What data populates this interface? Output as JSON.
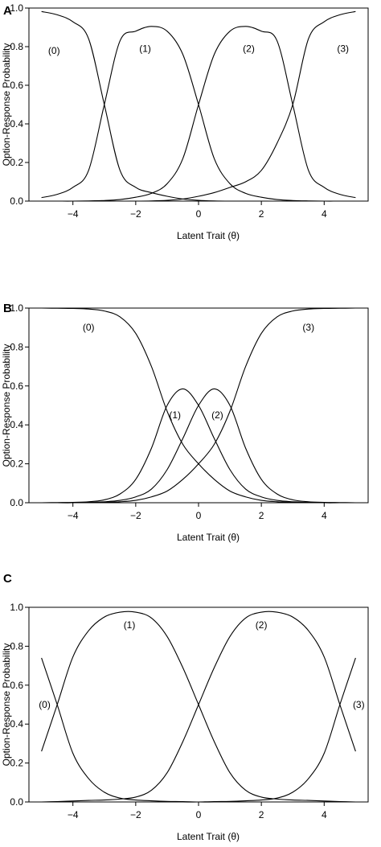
{
  "chart_data": [
    {
      "panel": "A",
      "type": "line",
      "xlabel": "Latent Trait (θ)",
      "ylabel": "Option-Response Probability",
      "xlim": [
        -5.4,
        5.4
      ],
      "ylim": [
        0.0,
        1.0
      ],
      "x_ticks": [
        -4,
        -2,
        0,
        2,
        4
      ],
      "x_tick_labels": [
        "−4",
        "−2",
        "0",
        "2",
        "4"
      ],
      "y_ticks": [
        0.0,
        0.2,
        0.4,
        0.6,
        0.8,
        1.0
      ],
      "y_tick_labels": [
        "0.0",
        "0.2",
        "0.4",
        "0.6",
        "0.8",
        "1.0"
      ],
      "grid": false,
      "x": [
        -5,
        -4.5,
        -4,
        -3.5,
        -3,
        -2.5,
        -2,
        -1.5,
        -1,
        -0.5,
        0,
        0.5,
        1,
        1.5,
        2,
        2.5,
        3,
        3.5,
        4,
        4.5,
        5
      ],
      "series": [
        {
          "name": "(0)",
          "values": [
            0.982,
            0.965,
            0.929,
            0.841,
            0.5,
            0.159,
            0.071,
            0.044,
            0.025,
            0.011,
            0.004,
            0.001,
            0.0,
            0.0,
            0.0,
            0.0,
            0.0,
            0.0,
            0.0,
            0.0,
            0.0
          ]
        },
        {
          "name": "(1)",
          "values": [
            0.018,
            0.035,
            0.071,
            0.159,
            0.5,
            0.83,
            0.88,
            0.905,
            0.88,
            0.76,
            0.5,
            0.22,
            0.09,
            0.04,
            0.02,
            0.008,
            0.003,
            0.001,
            0.0,
            0.0,
            0.0
          ]
        },
        {
          "name": "(2)",
          "values": [
            0.0,
            0.0,
            0.0,
            0.001,
            0.003,
            0.008,
            0.02,
            0.04,
            0.09,
            0.22,
            0.5,
            0.76,
            0.88,
            0.905,
            0.88,
            0.83,
            0.5,
            0.159,
            0.071,
            0.035,
            0.018
          ]
        },
        {
          "name": "(3)",
          "values": [
            0.0,
            0.0,
            0.0,
            0.0,
            0.0,
            0.0,
            0.0,
            0.001,
            0.004,
            0.011,
            0.025,
            0.044,
            0.071,
            0.1,
            0.159,
            0.3,
            0.5,
            0.841,
            0.929,
            0.965,
            0.982
          ]
        }
      ],
      "labels": [
        {
          "text": "(0)",
          "x": -4.6,
          "y": 0.78
        },
        {
          "text": "(1)",
          "x": -1.7,
          "y": 0.79
        },
        {
          "text": "(2)",
          "x": 1.6,
          "y": 0.79
        },
        {
          "text": "(3)",
          "x": 4.6,
          "y": 0.79
        }
      ]
    },
    {
      "panel": "B",
      "type": "line",
      "xlabel": "Latent Trait (θ)",
      "ylabel": "Option-Response Probability",
      "xlim": [
        -5.4,
        5.4
      ],
      "ylim": [
        0.0,
        1.0
      ],
      "x_ticks": [
        -4,
        -2,
        0,
        2,
        4
      ],
      "x_tick_labels": [
        "−4",
        "−2",
        "0",
        "2",
        "4"
      ],
      "y_ticks": [
        0.0,
        0.2,
        0.4,
        0.6,
        0.8,
        1.0
      ],
      "y_tick_labels": [
        "0.0",
        "0.2",
        "0.4",
        "0.6",
        "0.8",
        "1.0"
      ],
      "grid": false,
      "x": [
        -5,
        -4.5,
        -4,
        -3.5,
        -3,
        -2.5,
        -2,
        -1.5,
        -1,
        -0.5,
        0,
        0.5,
        1,
        1.5,
        2,
        2.5,
        3,
        3.5,
        4,
        4.5,
        5
      ],
      "series": [
        {
          "name": "(0)",
          "values": [
            1.0,
            0.999,
            0.998,
            0.995,
            0.985,
            0.955,
            0.87,
            0.7,
            0.47,
            0.3,
            0.2,
            0.12,
            0.06,
            0.03,
            0.012,
            0.005,
            0.002,
            0.001,
            0.0,
            0.0,
            0.0
          ]
        },
        {
          "name": "(1)",
          "values": [
            0.0,
            0.001,
            0.002,
            0.005,
            0.015,
            0.045,
            0.12,
            0.28,
            0.5,
            0.585,
            0.5,
            0.33,
            0.17,
            0.07,
            0.03,
            0.012,
            0.005,
            0.002,
            0.0,
            0.0,
            0.0
          ]
        },
        {
          "name": "(2)",
          "values": [
            0.0,
            0.0,
            0.0,
            0.002,
            0.005,
            0.012,
            0.03,
            0.07,
            0.17,
            0.33,
            0.5,
            0.585,
            0.5,
            0.28,
            0.12,
            0.045,
            0.015,
            0.005,
            0.002,
            0.001,
            0.0
          ]
        },
        {
          "name": "(3)",
          "values": [
            0.0,
            0.0,
            0.0,
            0.001,
            0.002,
            0.005,
            0.012,
            0.03,
            0.06,
            0.12,
            0.2,
            0.3,
            0.47,
            0.7,
            0.87,
            0.955,
            0.985,
            0.995,
            0.998,
            0.999,
            1.0
          ]
        }
      ],
      "labels": [
        {
          "text": "(0)",
          "x": -3.5,
          "y": 0.9
        },
        {
          "text": "(1)",
          "x": -0.75,
          "y": 0.45
        },
        {
          "text": "(2)",
          "x": 0.6,
          "y": 0.45
        },
        {
          "text": "(3)",
          "x": 3.5,
          "y": 0.9
        }
      ]
    },
    {
      "panel": "C",
      "type": "line",
      "xlabel": "Latent Trait (θ)",
      "ylabel": "Option-Response Probability",
      "xlim": [
        -5.4,
        5.4
      ],
      "ylim": [
        0.0,
        1.0
      ],
      "x_ticks": [
        -4,
        -2,
        0,
        2,
        4
      ],
      "x_tick_labels": [
        "−4",
        "−2",
        "0",
        "2",
        "4"
      ],
      "y_ticks": [
        0.0,
        0.2,
        0.4,
        0.6,
        0.8,
        1.0
      ],
      "y_tick_labels": [
        "0.0",
        "0.2",
        "0.4",
        "0.6",
        "0.8",
        "1.0"
      ],
      "grid": false,
      "x": [
        -5,
        -4.5,
        -4,
        -3.5,
        -3,
        -2.5,
        -2,
        -1.5,
        -1,
        -0.5,
        0,
        0.5,
        1,
        1.5,
        2,
        2.5,
        3,
        3.5,
        4,
        4.5,
        5
      ],
      "series": [
        {
          "name": "(0)",
          "values": [
            0.74,
            0.5,
            0.25,
            0.12,
            0.05,
            0.02,
            0.01,
            0.006,
            0.003,
            0.002,
            0.0,
            0.0,
            0.0,
            0.0,
            0.0,
            0.0,
            0.0,
            0.0,
            0.0,
            0.0,
            0.0
          ]
        },
        {
          "name": "(1)",
          "values": [
            0.26,
            0.5,
            0.745,
            0.88,
            0.95,
            0.975,
            0.975,
            0.945,
            0.85,
            0.69,
            0.5,
            0.31,
            0.15,
            0.06,
            0.025,
            0.015,
            0.01,
            0.008,
            0.005,
            0.002,
            0.0
          ]
        },
        {
          "name": "(2)",
          "values": [
            0.0,
            0.002,
            0.005,
            0.008,
            0.01,
            0.015,
            0.025,
            0.06,
            0.15,
            0.31,
            0.5,
            0.69,
            0.85,
            0.945,
            0.975,
            0.975,
            0.95,
            0.88,
            0.745,
            0.5,
            0.26
          ]
        },
        {
          "name": "(3)",
          "values": [
            0.0,
            0.0,
            0.0,
            0.0,
            0.0,
            0.0,
            0.0,
            0.0,
            0.0,
            0.0,
            0.0,
            0.002,
            0.003,
            0.006,
            0.01,
            0.02,
            0.05,
            0.12,
            0.25,
            0.5,
            0.74
          ]
        }
      ],
      "labels": [
        {
          "text": "(0)",
          "x": -4.9,
          "y": 0.5
        },
        {
          "text": "(1)",
          "x": -2.2,
          "y": 0.91
        },
        {
          "text": "(2)",
          "x": 2.0,
          "y": 0.91
        },
        {
          "text": "(3)",
          "x": 5.1,
          "y": 0.5
        }
      ]
    }
  ]
}
